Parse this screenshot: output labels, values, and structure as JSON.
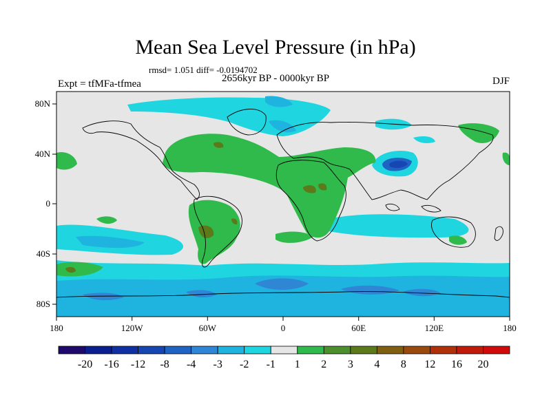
{
  "title": "Mean Sea Level Pressure (in hPa)",
  "stats": "rmsd= 1.051 diff= -0.0194702",
  "subtitle": "2656kyr BP - 0000kyr BP",
  "experiment": "Expt = tfMFa-tfmea",
  "season": "DJF",
  "axes": {
    "x_ticks": [
      "180",
      "120W",
      "60W",
      "0",
      "60E",
      "120E",
      "180"
    ],
    "y_ticks": [
      "80N",
      "40N",
      "0",
      "40S",
      "80S"
    ]
  },
  "colorbar": {
    "colors": [
      "#1f0a6b",
      "#0a1f8f",
      "#0f2fa3",
      "#1546b2",
      "#1f63c3",
      "#2f86d4",
      "#1fb3e0",
      "#1fd6e0",
      "#e6e6e6",
      "#2fba4b",
      "#4c8f2c",
      "#5c7a1a",
      "#806010",
      "#9a4a0c",
      "#b0300a",
      "#c01a0a",
      "#d00a0a"
    ],
    "labels": [
      "-20",
      "-16",
      "-12",
      "-8",
      "-4",
      "-3",
      "-2",
      "-1",
      "1",
      "2",
      "3",
      "4",
      "8",
      "12",
      "16",
      "20"
    ]
  }
}
